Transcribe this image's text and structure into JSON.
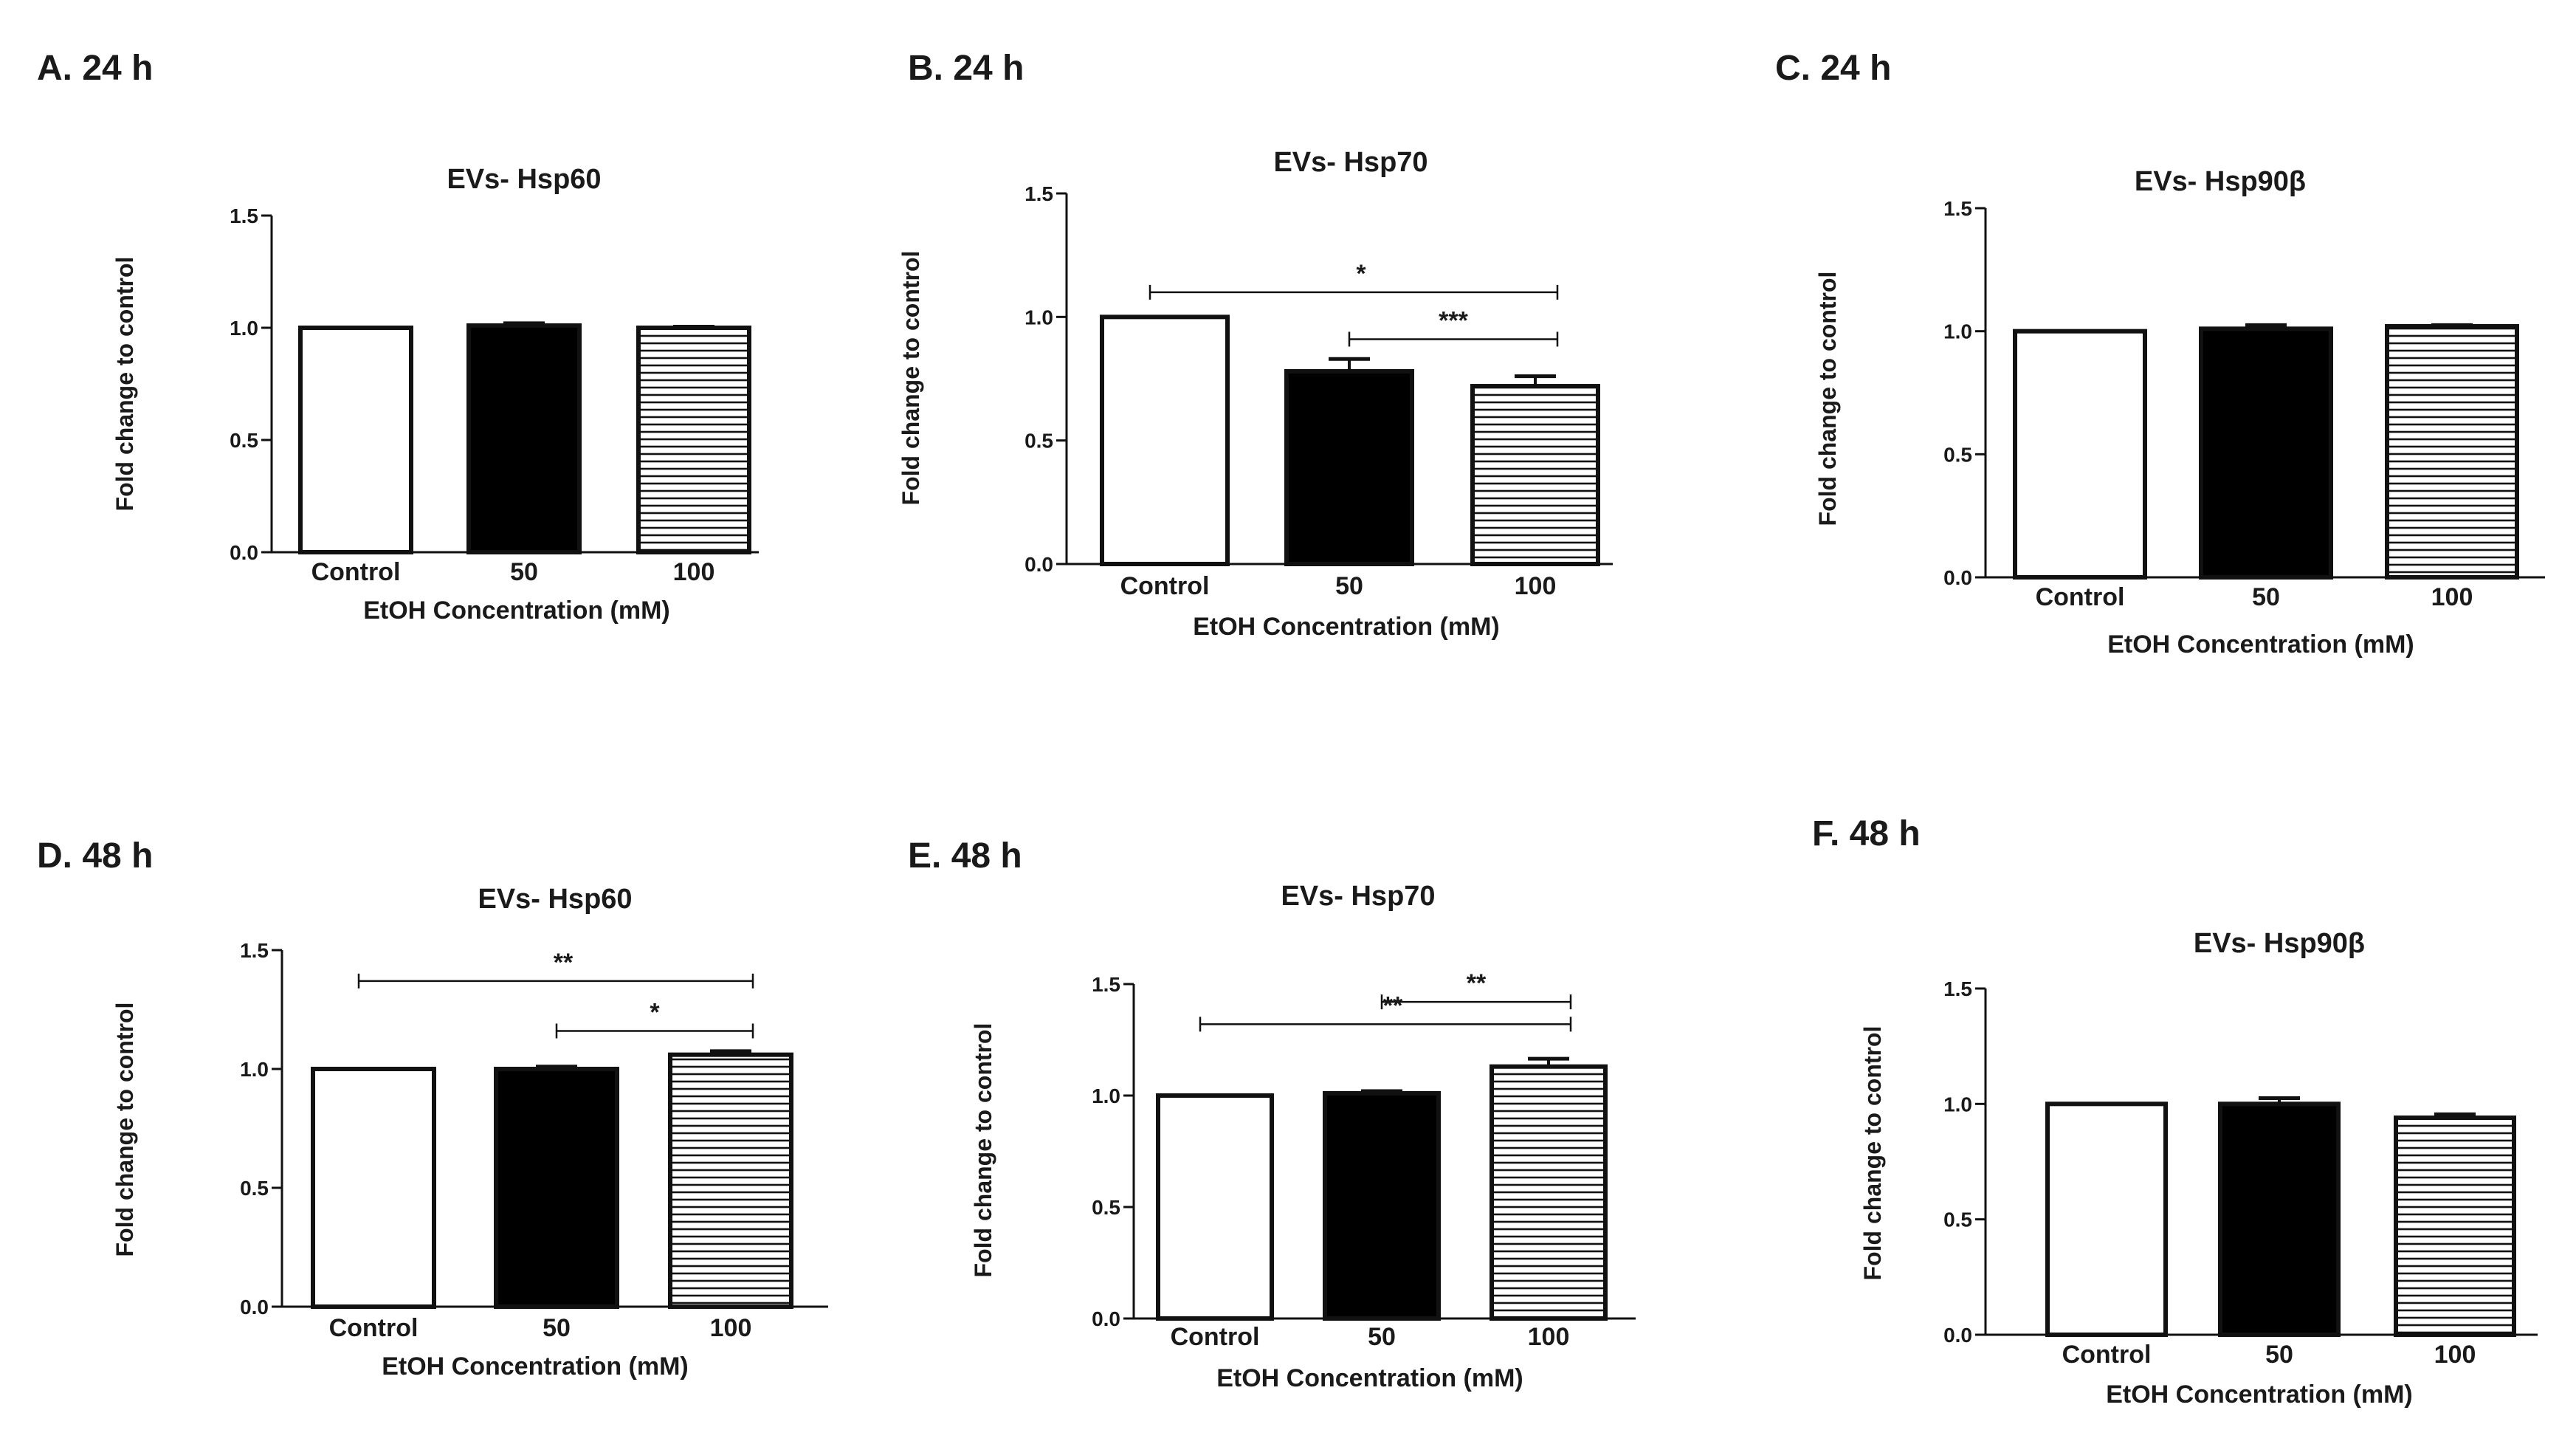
{
  "colors": {
    "ink": "#111111",
    "background": "#ffffff",
    "filled": "#000000",
    "open": "#ffffff"
  },
  "chart_data": [
    {
      "type": "bar",
      "panel_label": "A. 24 h",
      "title": "EVs- Hsp60",
      "xlabel": "EtOH Concentration (mM)",
      "ylabel": "Fold change to control",
      "ylim": [
        0,
        1.5
      ],
      "yticks": [
        "0.0",
        "0.5",
        "1.0",
        "1.5"
      ],
      "categories": [
        "Control",
        "50",
        "100"
      ],
      "values": [
        1.0,
        1.01,
        1.0
      ],
      "errors": [
        0,
        0.01,
        0.005
      ],
      "fills": [
        "open",
        "solid",
        "striped"
      ],
      "significance": []
    },
    {
      "type": "bar",
      "panel_label": "B. 24 h",
      "title": "EVs- Hsp70",
      "xlabel": "EtOH Concentration (mM)",
      "ylabel": "Fold change to control",
      "ylim": [
        0,
        1.5
      ],
      "yticks": [
        "0.0",
        "0.5",
        "1.0",
        "1.5"
      ],
      "categories": [
        "Control",
        "50",
        "100"
      ],
      "values": [
        1.0,
        0.78,
        0.72
      ],
      "errors": [
        0,
        0.05,
        0.04
      ],
      "fills": [
        "open",
        "solid",
        "striped"
      ],
      "significance": [
        {
          "from": 0,
          "to": 2,
          "label": "*",
          "y": 1.1
        },
        {
          "from": 1,
          "to": 2,
          "label": "***",
          "y": 0.91
        }
      ]
    },
    {
      "type": "bar",
      "panel_label": "C. 24 h",
      "title": "EVs- Hsp90β",
      "xlabel": "EtOH Concentration (mM)",
      "ylabel": "Fold change to control",
      "ylim": [
        0,
        1.5
      ],
      "yticks": [
        "0.0",
        "0.5",
        "1.0",
        "1.5"
      ],
      "categories": [
        "Control",
        "50",
        "100"
      ],
      "values": [
        1.0,
        1.01,
        1.02
      ],
      "errors": [
        0,
        0.015,
        0.005
      ],
      "fills": [
        "open",
        "solid",
        "striped"
      ],
      "significance": []
    },
    {
      "type": "bar",
      "panel_label": "D. 48 h",
      "title": "EVs- Hsp60",
      "xlabel": "EtOH Concentration (mM)",
      "ylabel": "Fold change to control",
      "ylim": [
        0,
        1.5
      ],
      "yticks": [
        "0.0",
        "0.5",
        "1.0",
        "1.5"
      ],
      "categories": [
        "Control",
        "50",
        "100"
      ],
      "values": [
        1.0,
        1.0,
        1.06
      ],
      "errors": [
        0,
        0.01,
        0.015
      ],
      "fills": [
        "open",
        "solid",
        "striped"
      ],
      "significance": [
        {
          "from": 0,
          "to": 2,
          "label": "**",
          "y": 1.37
        },
        {
          "from": 1,
          "to": 2,
          "label": "*",
          "y": 1.16
        }
      ]
    },
    {
      "type": "bar",
      "panel_label": "E. 48 h",
      "title": "EVs- Hsp70",
      "xlabel": "EtOH Concentration (mM)",
      "ylabel": "Fold change to control",
      "ylim": [
        0,
        1.5
      ],
      "yticks": [
        "0.0",
        "0.5",
        "1.0",
        "1.5"
      ],
      "categories": [
        "Control",
        "50",
        "100"
      ],
      "values": [
        1.0,
        1.01,
        1.13
      ],
      "errors": [
        0,
        0.01,
        0.035
      ],
      "fills": [
        "open",
        "solid",
        "striped"
      ],
      "significance": [
        {
          "from": 1,
          "to": 2,
          "label": "**",
          "y": 1.42
        },
        {
          "from": 0,
          "to": 2,
          "label": "**",
          "y": 1.32
        }
      ]
    },
    {
      "type": "bar",
      "panel_label": "F. 48 h",
      "title": "EVs- Hsp90β",
      "xlabel": "EtOH Concentration (mM)",
      "ylabel": "Fold change to control",
      "ylim": [
        0,
        1.5
      ],
      "yticks": [
        "0.0",
        "0.5",
        "1.0",
        "1.5"
      ],
      "categories": [
        "Control",
        "50",
        "100"
      ],
      "values": [
        1.0,
        1.0,
        0.94
      ],
      "errors": [
        0,
        0.025,
        0.015
      ],
      "fills": [
        "open",
        "solid",
        "striped"
      ],
      "significance": []
    }
  ]
}
